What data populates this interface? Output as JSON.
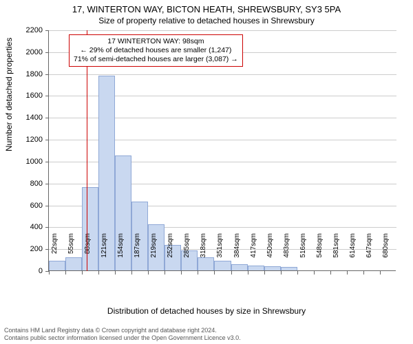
{
  "title": "17, WINTERTON WAY, BICTON HEATH, SHREWSBURY, SY3 5PA",
  "subtitle": "Size of property relative to detached houses in Shrewsbury",
  "ylabel": "Number of detached properties",
  "xlabel": "Distribution of detached houses by size in Shrewsbury",
  "chart": {
    "type": "histogram",
    "ylim": [
      0,
      2200
    ],
    "ytick_step": 200,
    "yticks": [
      0,
      200,
      400,
      600,
      800,
      1000,
      1200,
      1400,
      1600,
      1800,
      2000,
      2200
    ],
    "xticks": [
      "22sqm",
      "55sqm",
      "88sqm",
      "121sqm",
      "154sqm",
      "187sqm",
      "219sqm",
      "252sqm",
      "285sqm",
      "318sqm",
      "351sqm",
      "384sqm",
      "417sqm",
      "450sqm",
      "483sqm",
      "516sqm",
      "548sqm",
      "581sqm",
      "614sqm",
      "647sqm",
      "680sqm"
    ],
    "bar_color": "#c9d8f0",
    "bar_border": "#8fa8d6",
    "grid_color": "#cccccc",
    "axis_color": "#666666",
    "background": "#ffffff",
    "bar_width_ratio": 1.0,
    "values": [
      85,
      120,
      760,
      1780,
      1050,
      630,
      420,
      230,
      180,
      120,
      90,
      55,
      45,
      35,
      30,
      0,
      0,
      0,
      0,
      0,
      0
    ],
    "marker_line": {
      "position_label": "98sqm",
      "bin_index_after": 2.3,
      "color": "#cc0000"
    }
  },
  "annotation": {
    "lines": [
      "17 WINTERTON WAY: 98sqm",
      "← 29% of detached houses are smaller (1,247)",
      "71% of semi-detached houses are larger (3,087) →"
    ],
    "border_color": "#cc0000",
    "fontsize": 10.5
  },
  "footer": {
    "line1": "Contains HM Land Registry data © Crown copyright and database right 2024.",
    "line2": "Contains public sector information licensed under the Open Government Licence v3.0."
  }
}
